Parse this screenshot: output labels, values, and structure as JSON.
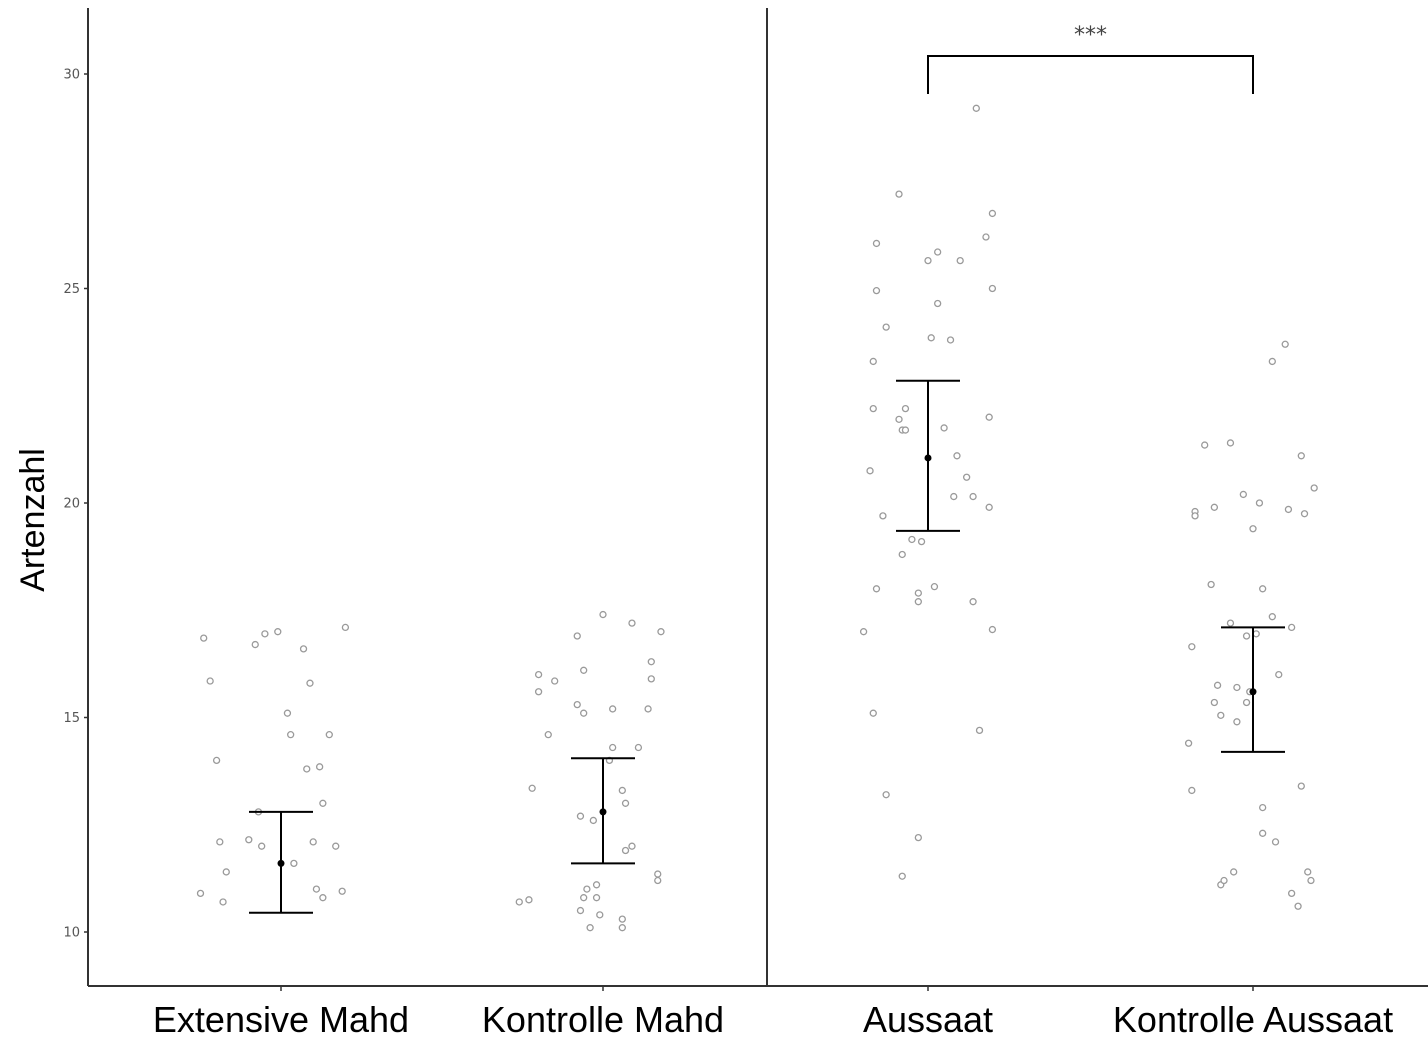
{
  "chart_data": {
    "type": "scatter",
    "ylabel": "Artenzahl",
    "ylim": [
      9.1,
      31.5
    ],
    "yticks": [
      10,
      15,
      20,
      25,
      30
    ],
    "categories": [
      "Extensive Mahd",
      "Kontrolle Mahd",
      "Aussaat",
      "Kontrolle Aussaat"
    ],
    "panel_divider_after_category": 2,
    "significance": {
      "from": "Aussaat",
      "to": "Kontrolle Aussaat",
      "label": "***"
    },
    "groups": [
      {
        "category": "Extensive Mahd",
        "mean": 11.6,
        "ci_low": 10.45,
        "ci_high": 12.8,
        "points": [
          [
            -0.24,
            16.85
          ],
          [
            -0.22,
            15.85
          ],
          [
            -0.2,
            14.0
          ],
          [
            -0.19,
            12.1
          ],
          [
            -0.18,
            10.7
          ],
          [
            -0.25,
            10.9
          ],
          [
            -0.17,
            11.4
          ],
          [
            -0.08,
            16.7
          ],
          [
            -0.05,
            16.95
          ],
          [
            -0.01,
            17.0
          ],
          [
            -0.1,
            12.15
          ],
          [
            -0.07,
            12.8
          ],
          [
            -0.06,
            12.0
          ],
          [
            0.02,
            15.1
          ],
          [
            0.03,
            14.6
          ],
          [
            0.04,
            11.6
          ],
          [
            0.07,
            16.6
          ],
          [
            0.09,
            15.8
          ],
          [
            0.08,
            13.8
          ],
          [
            0.1,
            12.1
          ],
          [
            0.12,
            13.85
          ],
          [
            0.13,
            13.0
          ],
          [
            0.15,
            14.6
          ],
          [
            0.17,
            12.0
          ],
          [
            0.11,
            11.0
          ],
          [
            0.13,
            10.8
          ],
          [
            0.19,
            10.95
          ],
          [
            0.2,
            17.1
          ]
        ]
      },
      {
        "category": "Kontrolle Mahd",
        "mean": 12.8,
        "ci_low": 11.6,
        "ci_high": 14.05,
        "points": [
          [
            -0.26,
            10.7
          ],
          [
            -0.23,
            10.75
          ],
          [
            -0.22,
            13.35
          ],
          [
            -0.2,
            16.0
          ],
          [
            -0.15,
            15.85
          ],
          [
            -0.2,
            15.6
          ],
          [
            -0.17,
            14.6
          ],
          [
            -0.08,
            16.9
          ],
          [
            -0.06,
            16.1
          ],
          [
            -0.08,
            15.3
          ],
          [
            -0.06,
            15.1
          ],
          [
            -0.07,
            12.7
          ],
          [
            -0.05,
            11.0
          ],
          [
            -0.06,
            10.8
          ],
          [
            -0.07,
            10.5
          ],
          [
            -0.04,
            10.1
          ],
          [
            -0.02,
            11.1
          ],
          [
            -0.02,
            10.8
          ],
          [
            -0.01,
            10.4
          ],
          [
            0.0,
            17.4
          ],
          [
            0.02,
            14.0
          ],
          [
            0.03,
            15.2
          ],
          [
            0.03,
            14.3
          ],
          [
            -0.03,
            12.6
          ],
          [
            0.06,
            13.3
          ],
          [
            0.07,
            13.0
          ],
          [
            0.09,
            12.0
          ],
          [
            0.07,
            11.9
          ],
          [
            0.06,
            10.3
          ],
          [
            0.06,
            10.1
          ],
          [
            0.09,
            17.2
          ],
          [
            0.11,
            14.3
          ],
          [
            0.14,
            15.2
          ],
          [
            0.15,
            15.9
          ],
          [
            0.15,
            16.3
          ],
          [
            0.18,
            17.0
          ],
          [
            0.17,
            11.35
          ],
          [
            0.17,
            11.2
          ]
        ]
      },
      {
        "category": "Aussaat",
        "mean": 21.05,
        "ci_low": 19.35,
        "ci_high": 22.85,
        "points": [
          [
            -0.2,
            17.0
          ],
          [
            -0.18,
            20.75
          ],
          [
            -0.17,
            22.2
          ],
          [
            -0.17,
            23.3
          ],
          [
            -0.16,
            26.05
          ],
          [
            -0.16,
            24.95
          ],
          [
            -0.16,
            18.0
          ],
          [
            -0.17,
            15.1
          ],
          [
            -0.13,
            24.1
          ],
          [
            -0.14,
            19.7
          ],
          [
            -0.13,
            13.2
          ],
          [
            -0.09,
            21.95
          ],
          [
            -0.09,
            27.2
          ],
          [
            -0.07,
            22.2
          ],
          [
            -0.08,
            21.7
          ],
          [
            -0.08,
            18.8
          ],
          [
            -0.08,
            11.3
          ],
          [
            -0.07,
            21.7
          ],
          [
            -0.05,
            19.15
          ],
          [
            -0.03,
            17.9
          ],
          [
            -0.03,
            17.7
          ],
          [
            -0.03,
            12.2
          ],
          [
            -0.02,
            19.1
          ],
          [
            0.0,
            25.65
          ],
          [
            0.01,
            23.85
          ],
          [
            0.02,
            18.05
          ],
          [
            0.03,
            25.85
          ],
          [
            0.03,
            24.65
          ],
          [
            0.05,
            21.75
          ],
          [
            0.07,
            23.8
          ],
          [
            0.08,
            20.15
          ],
          [
            0.09,
            21.1
          ],
          [
            0.1,
            25.65
          ],
          [
            0.12,
            20.6
          ],
          [
            0.14,
            20.15
          ],
          [
            0.14,
            17.7
          ],
          [
            0.15,
            29.2
          ],
          [
            0.16,
            14.7
          ],
          [
            0.18,
            26.2
          ],
          [
            0.19,
            22.0
          ],
          [
            0.2,
            25.0
          ],
          [
            0.2,
            26.75
          ],
          [
            0.19,
            19.9
          ],
          [
            0.2,
            17.05
          ]
        ]
      },
      {
        "category": "Kontrolle Aussaat",
        "mean": 15.6,
        "ci_low": 14.2,
        "ci_high": 17.1,
        "points": [
          [
            -0.2,
            14.4
          ],
          [
            -0.19,
            13.3
          ],
          [
            -0.19,
            16.65
          ],
          [
            -0.18,
            19.8
          ],
          [
            -0.18,
            19.7
          ],
          [
            -0.15,
            21.35
          ],
          [
            -0.13,
            18.1
          ],
          [
            -0.12,
            19.9
          ],
          [
            -0.12,
            15.35
          ],
          [
            -0.11,
            15.75
          ],
          [
            -0.1,
            15.05
          ],
          [
            -0.1,
            11.1
          ],
          [
            -0.09,
            11.2
          ],
          [
            -0.07,
            21.4
          ],
          [
            -0.07,
            17.2
          ],
          [
            -0.05,
            15.7
          ],
          [
            -0.05,
            14.9
          ],
          [
            -0.06,
            11.4
          ],
          [
            -0.03,
            20.2
          ],
          [
            -0.02,
            16.9
          ],
          [
            -0.02,
            15.35
          ],
          [
            -0.01,
            15.6
          ],
          [
            0.0,
            19.4
          ],
          [
            0.01,
            16.95
          ],
          [
            0.02,
            20.0
          ],
          [
            0.03,
            18.0
          ],
          [
            0.03,
            12.9
          ],
          [
            0.03,
            12.3
          ],
          [
            0.06,
            23.3
          ],
          [
            0.06,
            17.35
          ],
          [
            0.07,
            12.1
          ],
          [
            0.08,
            16.0
          ],
          [
            0.1,
            23.7
          ],
          [
            0.11,
            19.85
          ],
          [
            0.12,
            17.1
          ],
          [
            0.12,
            10.9
          ],
          [
            0.14,
            10.6
          ],
          [
            0.15,
            13.4
          ],
          [
            0.15,
            21.1
          ],
          [
            0.16,
            19.75
          ],
          [
            0.17,
            11.4
          ],
          [
            0.18,
            11.2
          ],
          [
            0.19,
            20.35
          ]
        ]
      }
    ]
  }
}
